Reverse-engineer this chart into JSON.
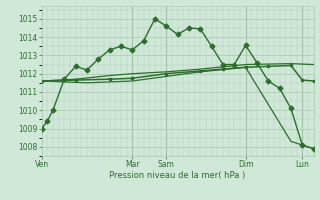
{
  "background_color": "#d0e8d8",
  "grid_color": "#b0ccb8",
  "line_color": "#2d6e2d",
  "text_color": "#2d6e2d",
  "vline_color": "#7a9a7a",
  "xlabel": "Pression niveau de la mer( hPa )",
  "ylim": [
    1007.5,
    1015.7
  ],
  "yticks": [
    1008,
    1009,
    1010,
    1011,
    1012,
    1013,
    1014,
    1015
  ],
  "xlim": [
    0,
    24
  ],
  "day_labels": [
    "Ven",
    "Mar",
    "Sam",
    "Dim",
    "Lun"
  ],
  "day_positions": [
    0,
    8,
    11,
    18,
    23
  ],
  "series1_x": [
    0,
    0.5,
    1,
    2,
    3,
    4,
    5,
    6,
    7,
    8,
    9,
    10,
    11,
    12,
    13,
    14,
    15,
    16,
    17,
    18,
    19,
    20,
    21,
    22,
    23,
    24
  ],
  "series1_y": [
    1009.0,
    1009.4,
    1010.0,
    1011.7,
    1012.4,
    1012.2,
    1012.8,
    1013.3,
    1013.5,
    1013.3,
    1013.8,
    1015.0,
    1014.6,
    1014.15,
    1014.5,
    1014.45,
    1013.5,
    1012.5,
    1012.5,
    1013.55,
    1012.6,
    1011.6,
    1011.2,
    1010.1,
    1008.1,
    1007.9
  ],
  "series2_x": [
    0,
    3,
    6,
    8,
    11,
    14,
    16,
    18,
    20,
    22,
    23,
    24
  ],
  "series2_y": [
    1011.6,
    1011.65,
    1011.7,
    1011.75,
    1012.0,
    1012.15,
    1012.25,
    1012.35,
    1012.4,
    1012.45,
    1011.65,
    1011.6
  ],
  "series3_x": [
    0,
    4,
    8,
    11,
    14,
    18,
    22,
    24
  ],
  "series3_y": [
    1011.6,
    1011.5,
    1011.6,
    1011.85,
    1012.1,
    1012.35,
    1008.3,
    1007.9
  ],
  "series4_x": [
    0,
    3,
    6,
    8,
    11,
    14,
    18,
    22,
    24
  ],
  "series4_y": [
    1011.6,
    1011.7,
    1011.9,
    1012.0,
    1012.1,
    1012.25,
    1012.5,
    1012.55,
    1012.5
  ]
}
